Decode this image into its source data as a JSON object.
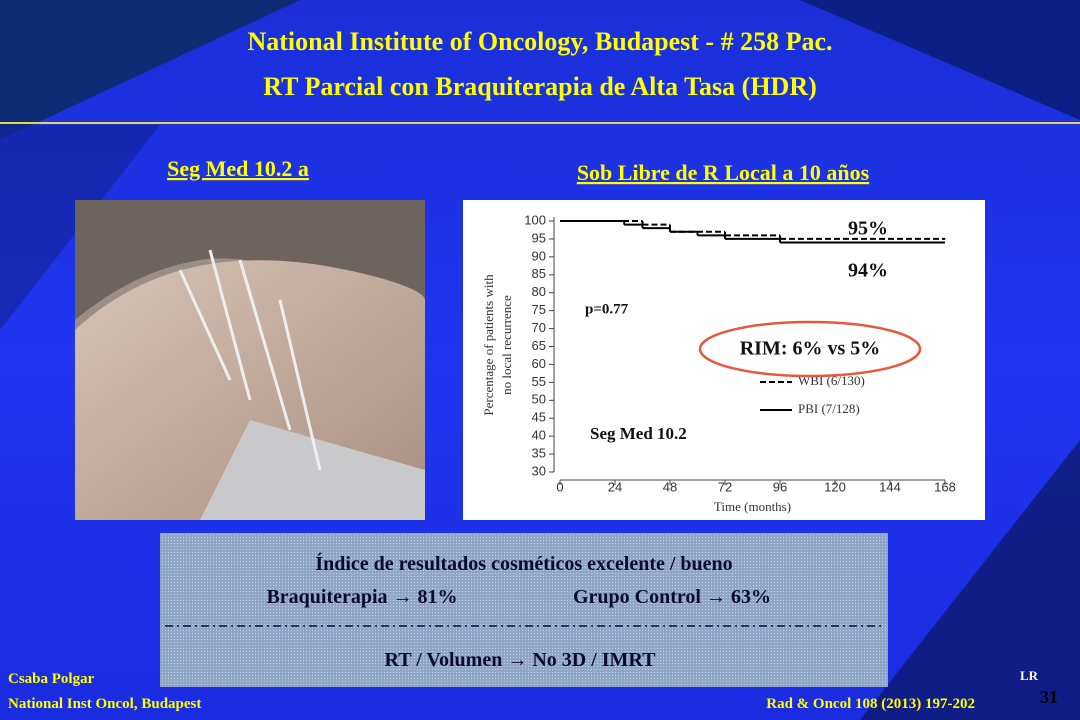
{
  "header": {
    "title": "National Institute of Oncology, Budapest - # 258 Pac.",
    "subtitle": "RT Parcial  con Braquiterapia de Alta Tasa (HDR)"
  },
  "left_heading": "Seg Med 10.2 a",
  "right_heading": "Sob Libre de R Local a 10 años",
  "chart_data": {
    "type": "step",
    "xlabel": "Time (months)",
    "ylabel": [
      "Percentage of patients with",
      "no local recurrence"
    ],
    "xlim": [
      0,
      168
    ],
    "xticks": [
      0,
      24,
      48,
      72,
      96,
      120,
      144,
      168
    ],
    "ylim": [
      30,
      100
    ],
    "yticks": [
      30,
      35,
      40,
      45,
      50,
      55,
      60,
      65,
      70,
      75,
      80,
      85,
      90,
      95,
      100
    ],
    "series": [
      {
        "name": "WBI (6/130)",
        "color": "#000000",
        "dashed": true,
        "x": [
          0,
          36,
          48,
          72,
          96,
          168
        ],
        "values": [
          100,
          99,
          97,
          96,
          95,
          95
        ]
      },
      {
        "name": "PBI (7/128)",
        "color": "#000000",
        "dashed": false,
        "x": [
          0,
          28,
          36,
          48,
          60,
          72,
          96,
          168
        ],
        "values": [
          100,
          99,
          98,
          97,
          96,
          95,
          94,
          94
        ]
      }
    ],
    "annotations": [
      "95%",
      "94%",
      "p=0.77",
      "RIM: 6% vs 5%",
      "Seg Med 10.2"
    ]
  },
  "box": {
    "lines": [
      "Índice de resultados cosméticos excelente / bueno",
      "Braquiterapia → 81%",
      "Grupo Control → 63%",
      "RT / Volumen → No 3D / IMRT"
    ]
  },
  "footer": {
    "author": "Csaba Polgar",
    "institution": "National Inst Oncol, Budapest",
    "reference": "Rad & Oncol 108 (2013) 197-202",
    "tag": "LR",
    "page": "31"
  }
}
